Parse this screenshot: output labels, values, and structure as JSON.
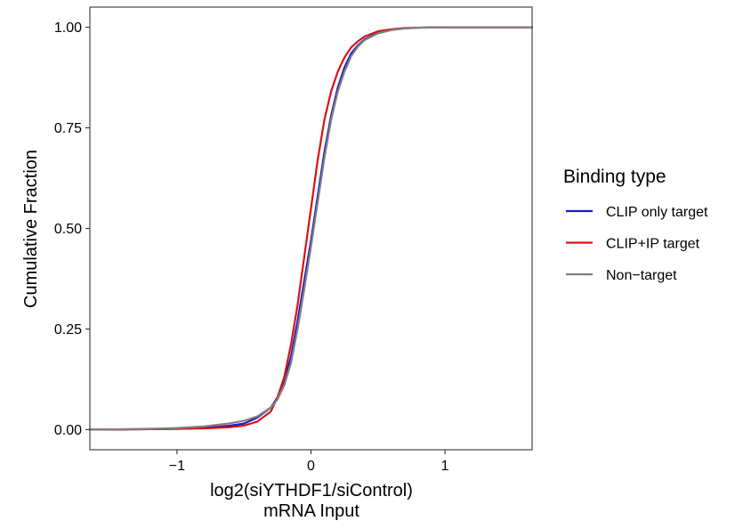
{
  "chart_data": {
    "type": "line",
    "subtype": "empirical-cumulative-distribution",
    "xlabel": "log2(siYTHDF1/siControl)",
    "xlabel_line2": "mRNA Input",
    "ylabel": "Cumulative Fraction",
    "xlim": [
      -1.65,
      1.65
    ],
    "ylim": [
      -0.05,
      1.05
    ],
    "x_ticks": [
      -1,
      0,
      1
    ],
    "x_tick_labels": [
      "−1",
      "0",
      "1"
    ],
    "y_ticks": [
      0,
      0.25,
      0.5,
      0.75,
      1
    ],
    "y_tick_labels": [
      "0.00",
      "0.25",
      "0.50",
      "0.75",
      "1.00"
    ],
    "grid": false,
    "legend": {
      "title": "Binding type",
      "placement": "right"
    },
    "series": [
      {
        "name": "CLIP only target",
        "color": "#1a1acc",
        "x": [
          -1.65,
          -1.2,
          -1.0,
          -0.8,
          -0.6,
          -0.5,
          -0.4,
          -0.3,
          -0.25,
          -0.2,
          -0.15,
          -0.1,
          -0.05,
          0.0,
          0.05,
          0.1,
          0.15,
          0.2,
          0.25,
          0.3,
          0.35,
          0.4,
          0.5,
          0.6,
          0.7,
          0.8,
          1.0,
          1.65
        ],
        "y": [
          0.0,
          0.001,
          0.002,
          0.004,
          0.01,
          0.015,
          0.03,
          0.055,
          0.08,
          0.12,
          0.18,
          0.27,
          0.37,
          0.47,
          0.58,
          0.69,
          0.78,
          0.85,
          0.9,
          0.935,
          0.955,
          0.97,
          0.986,
          0.994,
          0.997,
          0.999,
          1.0,
          1.0
        ]
      },
      {
        "name": "CLIP+IP target",
        "color": "#dd1111",
        "x": [
          -1.65,
          -1.2,
          -1.0,
          -0.8,
          -0.6,
          -0.5,
          -0.4,
          -0.3,
          -0.25,
          -0.2,
          -0.15,
          -0.1,
          -0.05,
          0.0,
          0.05,
          0.1,
          0.15,
          0.2,
          0.25,
          0.3,
          0.35,
          0.4,
          0.5,
          0.6,
          0.7,
          0.8,
          1.0,
          1.65
        ],
        "y": [
          0.0,
          0.001,
          0.002,
          0.003,
          0.006,
          0.01,
          0.02,
          0.045,
          0.08,
          0.13,
          0.21,
          0.31,
          0.43,
          0.55,
          0.67,
          0.77,
          0.84,
          0.89,
          0.925,
          0.95,
          0.965,
          0.977,
          0.99,
          0.995,
          0.998,
          0.999,
          1.0,
          1.0
        ]
      },
      {
        "name": "Non−target",
        "color": "#808080",
        "x": [
          -1.65,
          -1.2,
          -1.0,
          -0.8,
          -0.6,
          -0.5,
          -0.4,
          -0.3,
          -0.25,
          -0.2,
          -0.15,
          -0.1,
          -0.05,
          0.0,
          0.05,
          0.1,
          0.15,
          0.2,
          0.25,
          0.3,
          0.35,
          0.4,
          0.5,
          0.6,
          0.7,
          0.8,
          1.0,
          1.65
        ],
        "y": [
          0.0,
          0.002,
          0.004,
          0.008,
          0.016,
          0.022,
          0.033,
          0.055,
          0.075,
          0.11,
          0.165,
          0.25,
          0.35,
          0.455,
          0.565,
          0.675,
          0.77,
          0.84,
          0.89,
          0.928,
          0.952,
          0.968,
          0.985,
          0.993,
          0.997,
          0.999,
          1.0,
          1.0
        ]
      }
    ]
  }
}
